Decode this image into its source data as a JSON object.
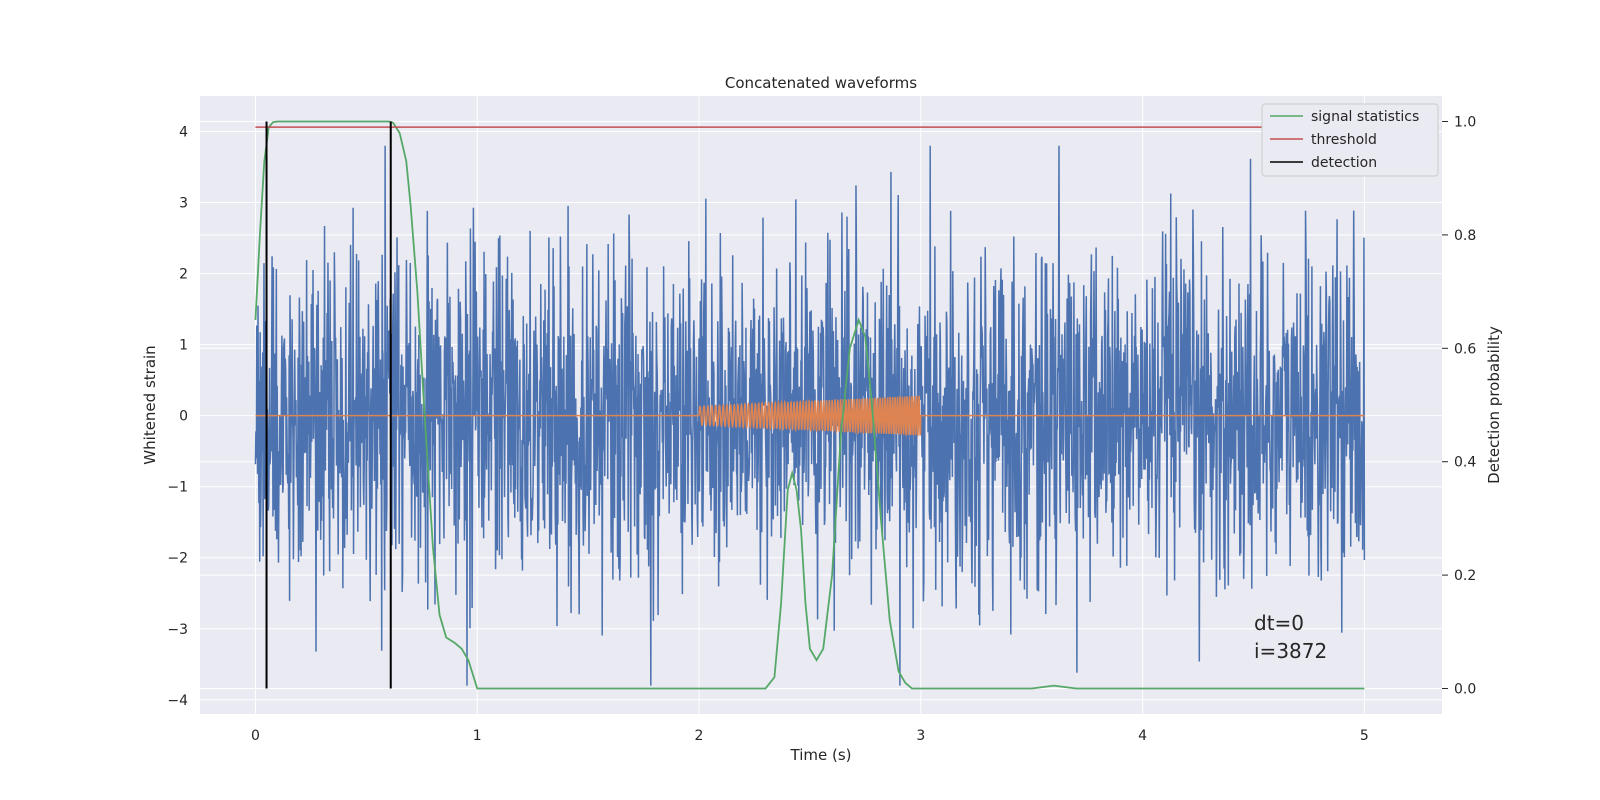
{
  "chart_data": {
    "type": "line",
    "title": "Concatenated waveforms",
    "xlabel": "Time (s)",
    "ylabel": "Whitened strain",
    "ylabel_right": "Detection probability",
    "xlim": [
      -0.25,
      5.35
    ],
    "ylim": [
      -4.2,
      4.5
    ],
    "ylim_right": [
      -0.045,
      1.045
    ],
    "x_ticks": [
      0,
      1,
      2,
      3,
      4,
      5
    ],
    "x_tick_labels": [
      "0",
      "1",
      "2",
      "3",
      "4",
      "5"
    ],
    "y_ticks": [
      -4,
      -3,
      -2,
      -1,
      0,
      1,
      2,
      3,
      4
    ],
    "y_tick_labels": [
      "−4",
      "−3",
      "−2",
      "−1",
      "0",
      "1",
      "2",
      "3",
      "4"
    ],
    "y_right_ticks": [
      0.0,
      0.2,
      0.4,
      0.6,
      0.8,
      1.0
    ],
    "y_right_tick_labels": [
      "0.0",
      "0.2",
      "0.4",
      "0.6",
      "0.8",
      "1.0"
    ],
    "grid": true,
    "legend_position": "top-right",
    "annotation": {
      "line1": "dt=0",
      "line2": "i=3872",
      "x": 4.5,
      "y": -3.3
    },
    "series": [
      {
        "name": "",
        "axis": "left",
        "color": "#4c72b0",
        "kind": "noise",
        "x_range": [
          0,
          5
        ],
        "typical_amplitude": 1.6,
        "max": 3.8,
        "min": -3.8
      },
      {
        "name": "",
        "axis": "left",
        "color": "#dd8452",
        "kind": "chirp",
        "x_range": [
          0,
          5
        ],
        "chirp_start": 2.0,
        "chirp_end": 3.0,
        "amplitude_start": 0.13,
        "amplitude_end": 0.28
      },
      {
        "name": "signal statistics",
        "axis": "right",
        "color": "#55a868",
        "x": [
          0,
          0.02,
          0.04,
          0.06,
          0.08,
          0.1,
          0.2,
          0.3,
          0.4,
          0.5,
          0.55,
          0.6,
          0.62,
          0.65,
          0.68,
          0.7,
          0.73,
          0.76,
          0.8,
          0.83,
          0.86,
          0.9,
          0.93,
          0.96,
          1.0,
          1.2,
          1.5,
          1.8,
          2.0,
          2.2,
          2.3,
          2.34,
          2.37,
          2.4,
          2.42,
          2.44,
          2.46,
          2.48,
          2.5,
          2.53,
          2.56,
          2.6,
          2.64,
          2.68,
          2.72,
          2.75,
          2.78,
          2.82,
          2.86,
          2.9,
          2.93,
          2.96,
          3.0,
          3.2,
          3.5,
          3.6,
          3.7,
          4.0,
          4.5,
          5.0
        ],
        "values": [
          0.65,
          0.8,
          0.93,
          0.99,
          0.999,
          1.0,
          1.0,
          1.0,
          1.0,
          1.0,
          1.0,
          1.0,
          0.998,
          0.98,
          0.93,
          0.85,
          0.7,
          0.5,
          0.25,
          0.13,
          0.09,
          0.08,
          0.07,
          0.05,
          0.0,
          0.0,
          0.0,
          0.0,
          0.0,
          0.0,
          0.0,
          0.02,
          0.15,
          0.35,
          0.38,
          0.35,
          0.28,
          0.15,
          0.07,
          0.05,
          0.07,
          0.2,
          0.45,
          0.6,
          0.65,
          0.62,
          0.5,
          0.3,
          0.12,
          0.03,
          0.01,
          0.0,
          0.0,
          0.0,
          0.0,
          0.005,
          0.0,
          0.0,
          0.0,
          0.0
        ]
      },
      {
        "name": "threshold",
        "axis": "right",
        "color": "#c44e52",
        "x": [
          0,
          5
        ],
        "values": [
          0.99,
          0.99
        ]
      },
      {
        "name": "detection",
        "axis": "right",
        "color": "#000000",
        "kind": "vlines",
        "x": [
          0.05,
          0.61
        ],
        "ymin": 0.0,
        "ymax": 1.0
      }
    ]
  }
}
